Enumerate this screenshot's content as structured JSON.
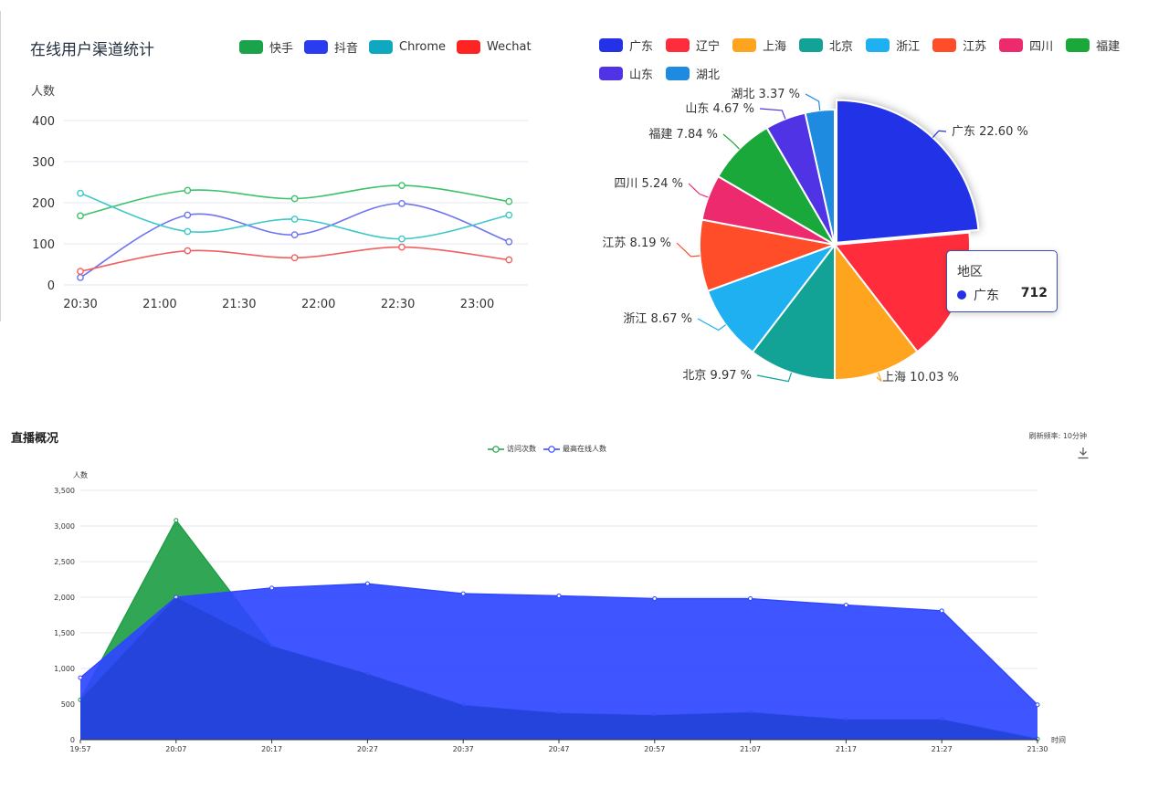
{
  "colors": {
    "kuaishou": "#1aa34a",
    "douyin": "#2b3cf0",
    "chrome": "#10a8c0",
    "wechat": "#ff2424",
    "line_kuaishou": "#3cc26a",
    "line_douyin": "#6f74f0",
    "line_chrome": "#3dc8c8",
    "line_wechat": "#f06060",
    "visits": "#1f9e45",
    "online": "#2f47ff",
    "grid": "#e3e7f0"
  },
  "chart_data": [
    {
      "type": "line",
      "title": "在线用户渠道统计",
      "ylabel": "人数",
      "xlabel": "",
      "categories": [
        "20:30",
        "21:00",
        "21:30",
        "22:00",
        "22:30",
        "23:00"
      ],
      "x": [
        0,
        1.35,
        2.7,
        4.05,
        5.4
      ],
      "ylim": [
        0,
        400
      ],
      "yticks": [
        0,
        100,
        200,
        300,
        400
      ],
      "series": [
        {
          "name": "快手",
          "values": [
            168,
            230,
            210,
            242,
            203
          ]
        },
        {
          "name": "抖音",
          "values": [
            18,
            170,
            122,
            198,
            105
          ]
        },
        {
          "name": "Chrome",
          "values": [
            223,
            130,
            160,
            112,
            170
          ]
        },
        {
          "name": "Wechat",
          "values": [
            33,
            83,
            66,
            92,
            61
          ]
        }
      ],
      "legend": "top-right",
      "smooth": true
    },
    {
      "type": "pie",
      "legend": "top",
      "slices": [
        {
          "name": "广东",
          "value": 22.6,
          "label": "广东 22.60 %",
          "color": "#2431e6"
        },
        {
          "name": "辽宁",
          "value": 15.32,
          "label": "",
          "color": "#ff2d3b"
        },
        {
          "name": "上海",
          "value": 10.03,
          "label": "上海 10.03 %",
          "color": "#ffa41f"
        },
        {
          "name": "北京",
          "value": 9.97,
          "label": "北京 9.97 %",
          "color": "#12a396"
        },
        {
          "name": "浙江",
          "value": 8.67,
          "label": "浙江 8.67 %",
          "color": "#1eb0f0"
        },
        {
          "name": "江苏",
          "value": 8.19,
          "label": "江苏 8.19 %",
          "color": "#ff4d2a"
        },
        {
          "name": "四川",
          "value": 5.24,
          "label": "四川 5.24 %",
          "color": "#ee2a6e"
        },
        {
          "name": "福建",
          "value": 7.84,
          "label": "福建 7.84 %",
          "color": "#1aa83a"
        },
        {
          "name": "山东",
          "value": 4.67,
          "label": "山东 4.67 %",
          "color": "#5133e6"
        },
        {
          "name": "湖北",
          "value": 3.37,
          "label": "湖北 3.37 %",
          "color": "#1e8ae0"
        }
      ],
      "tooltip": {
        "title": "地区",
        "name": "广东",
        "value": "712"
      }
    },
    {
      "type": "area",
      "title": "直播概况",
      "ylabel": "人数",
      "xlabel": "时间",
      "refresh_text": "刷新频率: 10分钟",
      "categories": [
        "19:57",
        "20:07",
        "20:17",
        "20:27",
        "20:37",
        "20:47",
        "20:57",
        "21:07",
        "21:17",
        "21:27",
        "21:30"
      ],
      "ylim": [
        0,
        3500
      ],
      "yticks": [
        "0",
        "500",
        "1,000",
        "1,500",
        "2,000",
        "2,500",
        "3,000",
        "3,500"
      ],
      "series": [
        {
          "name": "访问次数",
          "values": [
            560,
            3080,
            1310,
            920,
            480,
            370,
            340,
            380,
            280,
            280,
            10
          ]
        },
        {
          "name": "最高在线人数",
          "values": [
            870,
            2000,
            2130,
            2190,
            2050,
            2020,
            1980,
            1980,
            1890,
            1810,
            490
          ]
        }
      ],
      "legend": "top-center",
      "grid": true
    }
  ]
}
